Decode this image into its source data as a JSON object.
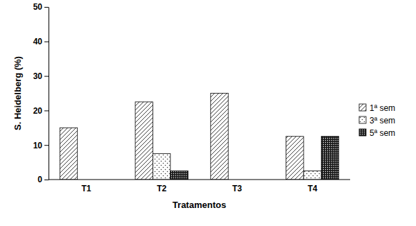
{
  "chart_data": {
    "type": "bar",
    "x_label": "Tratamentos",
    "y_label": "S. Heidelberg (%)",
    "categories": [
      "T1",
      "T2",
      "T3",
      "T4"
    ],
    "series": [
      {
        "name": "1ª sem",
        "color": "#404040",
        "values": [
          15,
          22.5,
          25,
          12.5
        ]
      },
      {
        "name": "3ª sem",
        "color": "#404040",
        "values": [
          0,
          7.5,
          0,
          2.5
        ]
      },
      {
        "name": "5ª sem",
        "color": "#1a1a1a",
        "values": [
          0,
          2.5,
          0,
          12.5
        ]
      }
    ],
    "ylim": [
      0,
      50
    ],
    "yticks": [
      0,
      10,
      20,
      30,
      40,
      50
    ],
    "grid": false,
    "legend": "right"
  }
}
